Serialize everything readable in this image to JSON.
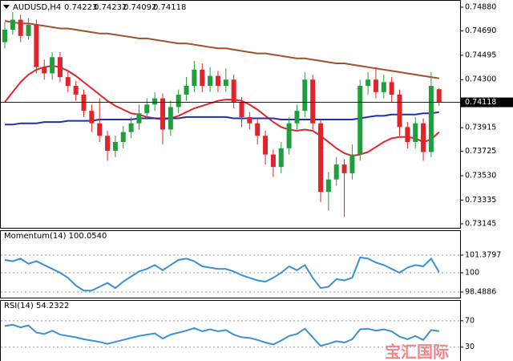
{
  "chart_data": [
    {
      "type": "candlestick",
      "title": "AUDUSD,H4",
      "candles": {
        "up_color": "#1e9e3c",
        "down_color": "#e0242b",
        "open": [
          0.746,
          0.747,
          0.7478,
          0.7465,
          0.7474,
          0.744,
          0.7435,
          0.7448,
          0.7432,
          0.7425,
          0.7418,
          0.7405,
          0.7395,
          0.7385,
          0.7373,
          0.738,
          0.7388,
          0.7395,
          0.7403,
          0.741,
          0.7415,
          0.739,
          0.7408,
          0.7418,
          0.7425,
          0.7438,
          0.7425,
          0.7433,
          0.7425,
          0.743,
          0.7412,
          0.74,
          0.7395,
          0.7385,
          0.737,
          0.736,
          0.7375,
          0.7395,
          0.7405,
          0.743,
          0.7395,
          0.734,
          0.735,
          0.7362,
          0.7355,
          0.737,
          0.7425,
          0.743,
          0.742,
          0.7428,
          0.7418,
          0.7392,
          0.738,
          0.7395,
          0.7372,
          0.74223
        ],
        "high": [
          0.7476,
          0.7484,
          0.7482,
          0.7479,
          0.7478,
          0.7446,
          0.7452,
          0.7452,
          0.7436,
          0.7429,
          0.7422,
          0.741,
          0.7415,
          0.7389,
          0.7385,
          0.7393,
          0.74,
          0.741,
          0.7415,
          0.742,
          0.7419,
          0.7413,
          0.7422,
          0.7432,
          0.7445,
          0.7443,
          0.744,
          0.7437,
          0.7439,
          0.7434,
          0.7416,
          0.7404,
          0.7399,
          0.7389,
          0.7374,
          0.738,
          0.74,
          0.741,
          0.7436,
          0.7434,
          0.7398,
          0.7356,
          0.7368,
          0.7366,
          0.7378,
          0.743,
          0.7436,
          0.744,
          0.7434,
          0.7432,
          0.7422,
          0.7396,
          0.74,
          0.7399,
          0.7436,
          0.74232
        ],
        "low": [
          0.7455,
          0.7466,
          0.746,
          0.7462,
          0.7435,
          0.743,
          0.743,
          0.7428,
          0.742,
          0.7413,
          0.74,
          0.7388,
          0.738,
          0.7365,
          0.7368,
          0.7375,
          0.7383,
          0.739,
          0.7398,
          0.7405,
          0.7378,
          0.7385,
          0.7403,
          0.7413,
          0.742,
          0.742,
          0.742,
          0.742,
          0.742,
          0.7407,
          0.7392,
          0.739,
          0.7378,
          0.7362,
          0.7352,
          0.7355,
          0.737,
          0.739,
          0.74,
          0.739,
          0.7332,
          0.7325,
          0.7345,
          0.732,
          0.735,
          0.7365,
          0.7418,
          0.7415,
          0.7415,
          0.7412,
          0.7385,
          0.7375,
          0.7375,
          0.7365,
          0.7368,
          0.74092
        ],
        "close": [
          0.747,
          0.7478,
          0.7465,
          0.7474,
          0.744,
          0.7435,
          0.7448,
          0.7432,
          0.7425,
          0.7418,
          0.7405,
          0.7395,
          0.7385,
          0.7373,
          0.738,
          0.7388,
          0.7395,
          0.7403,
          0.741,
          0.7415,
          0.739,
          0.7408,
          0.7418,
          0.7425,
          0.7438,
          0.7425,
          0.7433,
          0.7425,
          0.743,
          0.7412,
          0.74,
          0.7395,
          0.7385,
          0.737,
          0.736,
          0.7375,
          0.7395,
          0.7405,
          0.743,
          0.7395,
          0.734,
          0.735,
          0.7362,
          0.7355,
          0.737,
          0.7425,
          0.743,
          0.742,
          0.7428,
          0.7418,
          0.7392,
          0.738,
          0.7395,
          0.7372,
          0.7425,
          0.74118
        ]
      },
      "overlays": [
        {
          "color": "#a0522d",
          "values": [
            0.7477,
            0.7476,
            0.7475,
            0.7475,
            0.7474,
            0.7473,
            0.7472,
            0.7471,
            0.7471,
            0.747,
            0.7469,
            0.7468,
            0.7467,
            0.7467,
            0.7466,
            0.7465,
            0.7464,
            0.7463,
            0.7463,
            0.7462,
            0.7461,
            0.746,
            0.7459,
            0.7459,
            0.7458,
            0.7457,
            0.7456,
            0.7455,
            0.7455,
            0.7454,
            0.7453,
            0.7452,
            0.7451,
            0.7451,
            0.745,
            0.7449,
            0.7448,
            0.7447,
            0.7447,
            0.7446,
            0.7445,
            0.7444,
            0.7443,
            0.7443,
            0.7442,
            0.7441,
            0.744,
            0.7439,
            0.7438,
            0.7437,
            0.7436,
            0.7435,
            0.7434,
            0.7433,
            0.7432,
            0.7431
          ]
        },
        {
          "color": "#e0242b",
          "values": [
            0.7412,
            0.742,
            0.7428,
            0.7434,
            0.7438,
            0.744,
            0.7441,
            0.744,
            0.7437,
            0.7433,
            0.7428,
            0.7423,
            0.7418,
            0.7413,
            0.7409,
            0.7406,
            0.7403,
            0.7402,
            0.74,
            0.7399,
            0.7398,
            0.7399,
            0.7401,
            0.7404,
            0.7407,
            0.7409,
            0.7411,
            0.7413,
            0.7414,
            0.7414,
            0.7413,
            0.741,
            0.7406,
            0.7401,
            0.7396,
            0.7392,
            0.739,
            0.7389,
            0.739,
            0.7389,
            0.7385,
            0.738,
            0.7375,
            0.7371,
            0.7369,
            0.737,
            0.7372,
            0.7376,
            0.738,
            0.7383,
            0.7384,
            0.7384,
            0.7383,
            0.738,
            0.7382,
            0.7388
          ]
        },
        {
          "color": "#1f2fb0",
          "values": [
            0.7394,
            0.7394,
            0.7395,
            0.7395,
            0.7395,
            0.7396,
            0.7396,
            0.7396,
            0.7397,
            0.7397,
            0.7397,
            0.7397,
            0.7398,
            0.7398,
            0.7398,
            0.7398,
            0.7398,
            0.7399,
            0.7399,
            0.7399,
            0.7399,
            0.7399,
            0.7399,
            0.74,
            0.74,
            0.74,
            0.74,
            0.74,
            0.74,
            0.7399,
            0.7399,
            0.7399,
            0.7399,
            0.7399,
            0.7399,
            0.7398,
            0.7398,
            0.7398,
            0.7398,
            0.7398,
            0.7398,
            0.7398,
            0.7398,
            0.7398,
            0.7398,
            0.7399,
            0.74,
            0.7401,
            0.7401,
            0.7402,
            0.7402,
            0.7402,
            0.7402,
            0.7403,
            0.7403,
            0.7404
          ]
        }
      ],
      "ylim": [
        0.73119,
        0.74925
      ],
      "yticks": [
        {
          "value": 0.7488,
          "label": "0.74880"
        },
        {
          "value": 0.7469,
          "label": "0.74690"
        },
        {
          "value": 0.74495,
          "label": "0.74495"
        },
        {
          "value": 0.743,
          "label": "0.74300"
        },
        {
          "value": 0.73915,
          "label": "0.73915"
        },
        {
          "value": 0.73725,
          "label": "0.73725"
        },
        {
          "value": 0.7353,
          "label": "0.73530"
        },
        {
          "value": 0.73335,
          "label": "0.73335"
        },
        {
          "value": 0.73145,
          "label": "0.73145"
        }
      ]
    },
    {
      "type": "line",
      "title": "Momentum(14) 100.0540",
      "series": [
        {
          "color": "#3a8fd6",
          "values": [
            101.0,
            100.9,
            101.1,
            100.7,
            100.9,
            100.6,
            100.3,
            100.0,
            99.6,
            99.0,
            98.6,
            98.6,
            98.9,
            99.2,
            98.8,
            99.3,
            99.7,
            100.1,
            100.3,
            100.6,
            100.2,
            100.6,
            101.0,
            101.1,
            100.9,
            100.5,
            100.4,
            100.3,
            100.3,
            100.1,
            99.8,
            99.6,
            99.4,
            99.3,
            99.6,
            100.0,
            100.5,
            100.2,
            100.6,
            99.6,
            98.8,
            98.9,
            99.5,
            99.4,
            99.6,
            101.2,
            101.1,
            100.8,
            100.6,
            100.3,
            100.0,
            100.4,
            100.6,
            100.5,
            101.1,
            100.054
          ]
        }
      ],
      "ylim": [
        98.175,
        101.756
      ],
      "yticks": [
        101.3797,
        100,
        98.4886
      ]
    },
    {
      "type": "line",
      "title": "RSI(14) 54.2322",
      "series": [
        {
          "color": "#3a8fd6",
          "values": [
            62,
            64,
            60,
            63,
            52,
            50,
            55,
            49,
            47,
            45,
            42,
            40,
            38,
            35,
            38,
            41,
            44,
            47,
            49,
            51,
            43,
            49,
            52,
            55,
            59,
            54,
            57,
            54,
            56,
            49,
            45,
            44,
            41,
            37,
            34,
            40,
            47,
            50,
            58,
            45,
            32,
            35,
            39,
            37,
            42,
            57,
            58,
            55,
            57,
            54,
            46,
            42,
            47,
            41,
            56,
            54.2322
          ]
        }
      ],
      "ylim": [
        9,
        99
      ],
      "yticks": [
        70,
        30
      ]
    }
  ],
  "watermark": "宝汇国际"
}
